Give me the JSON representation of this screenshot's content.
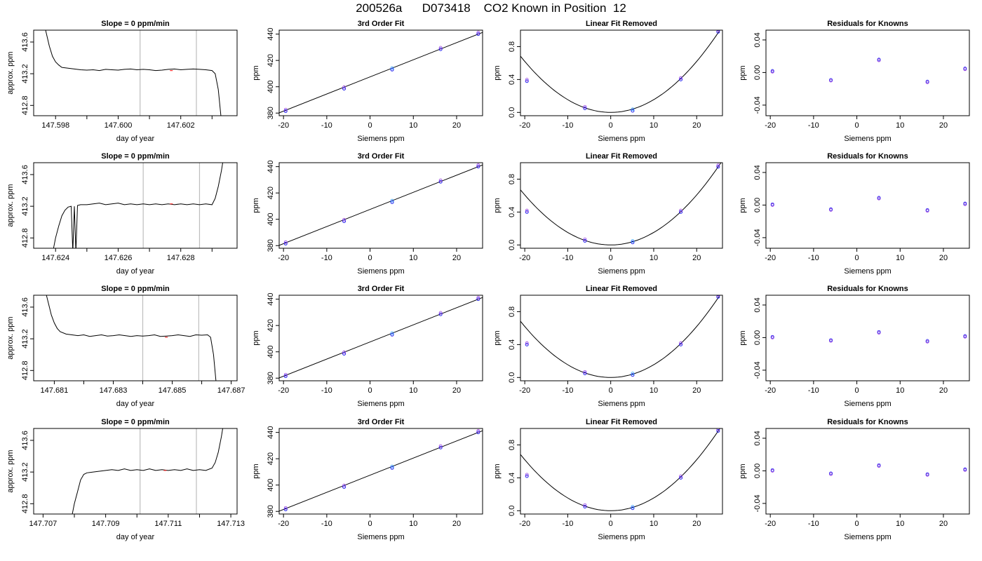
{
  "figure": {
    "title": "200526a      D073418    CO2 Known in Position  12"
  },
  "chart_data": [
    {
      "row": 1,
      "type": "line",
      "title": "Slope =  0  ppm/min",
      "xlabel": "day of year",
      "ylabel": "approx. ppm",
      "xlim": [
        147.5973,
        147.6038
      ],
      "ylim": [
        412.67,
        413.75
      ],
      "xticks": [
        "147.598",
        "147.600",
        "147.602"
      ],
      "xtick_values": [
        147.598,
        147.6,
        147.602
      ],
      "yticks": [
        "412.8",
        "413.2",
        "413.6"
      ],
      "ytick_values": [
        412.8,
        413.2,
        413.6
      ],
      "minor_xticks": [
        147.599,
        147.601,
        147.603
      ],
      "vlines": [
        147.6007,
        147.6025
      ],
      "x": [
        147.5976,
        147.5977,
        147.5978,
        147.5979,
        147.598,
        147.5981,
        147.5982,
        147.5984,
        147.5986,
        147.5988,
        147.599,
        147.5992,
        147.5994,
        147.5996,
        147.5998,
        147.6,
        147.6002,
        147.6004,
        147.6006,
        147.6008,
        147.601,
        147.6012,
        147.6014,
        147.6016,
        147.6018,
        147.602,
        147.6022,
        147.6024,
        147.6026,
        147.6028,
        147.603,
        147.6031,
        147.6032,
        147.6033
      ],
      "y": [
        413.9,
        413.72,
        413.55,
        413.42,
        413.35,
        413.31,
        413.28,
        413.27,
        413.26,
        413.25,
        413.245,
        413.25,
        413.24,
        413.255,
        413.25,
        413.245,
        413.255,
        413.26,
        413.25,
        413.255,
        413.25,
        413.24,
        413.245,
        413.255,
        413.26,
        413.25,
        413.255,
        413.26,
        413.255,
        413.25,
        413.24,
        413.2,
        413.0,
        412.6
      ],
      "marker": {
        "x": 147.6017,
        "y": 413.24
      }
    },
    {
      "row": 1,
      "type": "scatter",
      "title": "3rd Order Fit",
      "xlabel": "Siemens ppm",
      "ylabel": "ppm",
      "xlim": [
        -21,
        26
      ],
      "ylim": [
        378,
        443
      ],
      "xticks": [
        "-20",
        "-10",
        "0",
        "10",
        "20"
      ],
      "xtick_values": [
        -20,
        -10,
        0,
        10,
        20
      ],
      "yticks": [
        "380",
        "400",
        "420",
        "440"
      ],
      "ytick_values": [
        380,
        400,
        420,
        440
      ],
      "x": [
        -19.5,
        -6.0,
        5.1,
        16.3,
        25.0
      ],
      "y": [
        381.5,
        398.5,
        413.0,
        428.5,
        440.0
      ],
      "curve": [
        [
          -21,
          380.2
        ],
        [
          26,
          441.3
        ]
      ]
    },
    {
      "row": 1,
      "type": "scatter",
      "title": "Linear Fit Removed",
      "xlabel": "Siemens ppm",
      "ylabel": "ppm",
      "xlim": [
        -21,
        26
      ],
      "ylim": [
        -0.04,
        1.0
      ],
      "xticks": [
        "-20",
        "-10",
        "0",
        "10",
        "20"
      ],
      "xtick_values": [
        -20,
        -10,
        0,
        10,
        20
      ],
      "yticks": [
        "0.0",
        "0.4",
        "0.8"
      ],
      "ytick_values": [
        0.0,
        0.4,
        0.8
      ],
      "x": [
        -19.5,
        -6.0,
        5.1,
        16.3,
        25.0
      ],
      "y": [
        0.38,
        0.05,
        0.02,
        0.4,
        0.98
      ],
      "curve_coef": 0.00155
    },
    {
      "row": 1,
      "type": "scatter",
      "title": "Residuals for Knowns",
      "xlabel": "Siemens ppm",
      "ylabel": "ppm",
      "xlim": [
        -21,
        26
      ],
      "ylim": [
        -0.053,
        0.052
      ],
      "xticks": [
        "-20",
        "-10",
        "0",
        "10",
        "20"
      ],
      "xtick_values": [
        -20,
        -10,
        0,
        10,
        20
      ],
      "yticks": [
        "-0.04",
        "0.00",
        "0.04"
      ],
      "ytick_values": [
        -0.04,
        0.0,
        0.04
      ],
      "x": [
        -19.5,
        -6.0,
        5.1,
        16.3,
        25.0
      ],
      "y": [
        0.001,
        -0.01,
        0.015,
        -0.012,
        0.004
      ]
    },
    {
      "row": 2,
      "type": "line",
      "title": "Slope =  0  ppm/min",
      "xlabel": "day of year",
      "ylabel": "approx. ppm",
      "xlim": [
        147.6233,
        147.6298
      ],
      "ylim": [
        412.67,
        413.75
      ],
      "xticks": [
        "147.624",
        "147.626",
        "147.628"
      ],
      "xtick_values": [
        147.624,
        147.626,
        147.628
      ],
      "yticks": [
        "412.8",
        "413.2",
        "413.6"
      ],
      "ytick_values": [
        412.8,
        413.2,
        413.6
      ],
      "minor_xticks": [
        147.625,
        147.627,
        147.629
      ],
      "vlines": [
        147.6268,
        147.6286
      ],
      "x": [
        147.6239,
        147.624,
        147.6241,
        147.6242,
        147.6243,
        147.6244,
        147.6245,
        147.62455,
        147.6246,
        147.62465,
        147.6247,
        147.6248,
        147.625,
        147.6252,
        147.6254,
        147.6256,
        147.6258,
        147.626,
        147.6262,
        147.6264,
        147.6266,
        147.6268,
        147.627,
        147.6272,
        147.6274,
        147.6276,
        147.6278,
        147.628,
        147.6282,
        147.6284,
        147.6286,
        147.6288,
        147.629,
        147.6291,
        147.6292,
        147.6293,
        147.6294
      ],
      "y": [
        412.6,
        412.8,
        412.95,
        413.08,
        413.15,
        413.19,
        413.2,
        412.62,
        413.2,
        412.62,
        413.21,
        413.22,
        413.22,
        413.23,
        413.24,
        413.22,
        413.23,
        413.24,
        413.22,
        413.23,
        413.22,
        413.23,
        413.22,
        413.23,
        413.22,
        413.23,
        413.22,
        413.23,
        413.22,
        413.23,
        413.22,
        413.23,
        413.22,
        413.3,
        413.45,
        413.65,
        413.9
      ],
      "marker": {
        "x": 147.6277,
        "y": 413.23
      }
    },
    {
      "row": 2,
      "type": "scatter",
      "title": "3rd Order Fit",
      "xlabel": "Siemens ppm",
      "ylabel": "ppm",
      "xlim": [
        -21,
        26
      ],
      "ylim": [
        378,
        443
      ],
      "xticks": [
        "-20",
        "-10",
        "0",
        "10",
        "20"
      ],
      "xtick_values": [
        -20,
        -10,
        0,
        10,
        20
      ],
      "yticks": [
        "380",
        "400",
        "420",
        "440"
      ],
      "ytick_values": [
        380,
        400,
        420,
        440
      ],
      "x": [
        -19.5,
        -6.0,
        5.1,
        16.3,
        25.0
      ],
      "y": [
        381.5,
        398.5,
        413.0,
        428.5,
        440.0
      ],
      "curve": [
        [
          -21,
          380.2
        ],
        [
          26,
          441.3
        ]
      ]
    },
    {
      "row": 2,
      "type": "scatter",
      "title": "Linear Fit Removed",
      "xlabel": "Siemens ppm",
      "ylabel": "ppm",
      "xlim": [
        -21,
        26
      ],
      "ylim": [
        -0.04,
        1.0
      ],
      "xticks": [
        "-20",
        "-10",
        "0",
        "10",
        "20"
      ],
      "xtick_values": [
        -20,
        -10,
        0,
        10,
        20
      ],
      "yticks": [
        "0.0",
        "0.4",
        "0.8"
      ],
      "ytick_values": [
        0.0,
        0.4,
        0.8
      ],
      "x": [
        -19.5,
        -6.0,
        5.1,
        16.3,
        25.0
      ],
      "y": [
        0.4,
        0.05,
        0.03,
        0.4,
        0.95
      ],
      "curve_coef": 0.00152
    },
    {
      "row": 2,
      "type": "scatter",
      "title": "Residuals for Knowns",
      "xlabel": "Siemens ppm",
      "ylabel": "ppm",
      "xlim": [
        -21,
        26
      ],
      "ylim": [
        -0.053,
        0.052
      ],
      "xticks": [
        "-20",
        "-10",
        "0",
        "10",
        "20"
      ],
      "xtick_values": [
        -20,
        -10,
        0,
        10,
        20
      ],
      "yticks": [
        "-0.04",
        "0.00",
        "0.04"
      ],
      "ytick_values": [
        -0.04,
        0.0,
        0.04
      ],
      "x": [
        -19.5,
        -6.0,
        5.1,
        16.3,
        25.0
      ],
      "y": [
        0.0,
        -0.006,
        0.008,
        -0.007,
        0.001
      ]
    },
    {
      "row": 3,
      "type": "line",
      "title": "Slope =  0  ppm/min",
      "xlabel": "day of year",
      "ylabel": "approx. ppm",
      "xlim": [
        147.6803,
        147.6872
      ],
      "ylim": [
        412.67,
        413.75
      ],
      "xticks": [
        "147.681",
        "147.683",
        "147.685",
        "147.687"
      ],
      "xtick_values": [
        147.681,
        147.683,
        147.685,
        147.687
      ],
      "yticks": [
        "412.8",
        "413.2",
        "413.6"
      ],
      "ytick_values": [
        412.8,
        413.2,
        413.6
      ],
      "minor_xticks": [
        147.682,
        147.684,
        147.686
      ],
      "vlines": [
        147.684,
        147.6859
      ],
      "x": [
        147.6807,
        147.6808,
        147.6809,
        147.681,
        147.6811,
        147.6812,
        147.6814,
        147.6816,
        147.6818,
        147.682,
        147.6822,
        147.6824,
        147.6826,
        147.6828,
        147.683,
        147.6832,
        147.6834,
        147.6836,
        147.6838,
        147.684,
        147.6842,
        147.6844,
        147.6846,
        147.6848,
        147.685,
        147.6852,
        147.6854,
        147.6856,
        147.6858,
        147.686,
        147.6862,
        147.6863,
        147.6864,
        147.6865
      ],
      "y": [
        413.8,
        413.65,
        413.5,
        413.4,
        413.33,
        413.29,
        413.26,
        413.25,
        413.24,
        413.25,
        413.23,
        413.24,
        413.25,
        413.235,
        413.24,
        413.25,
        413.24,
        413.23,
        413.24,
        413.235,
        413.24,
        413.25,
        413.23,
        413.235,
        413.24,
        413.25,
        413.24,
        413.23,
        413.25,
        413.245,
        413.25,
        413.22,
        413.0,
        412.6
      ],
      "marker": {
        "x": 147.6848,
        "y": 413.22
      }
    },
    {
      "row": 3,
      "type": "scatter",
      "title": "3rd Order Fit",
      "xlabel": "Siemens ppm",
      "ylabel": "ppm",
      "xlim": [
        -21,
        26
      ],
      "ylim": [
        378,
        443
      ],
      "xticks": [
        "-20",
        "-10",
        "0",
        "10",
        "20"
      ],
      "xtick_values": [
        -20,
        -10,
        0,
        10,
        20
      ],
      "yticks": [
        "380",
        "400",
        "420",
        "440"
      ],
      "ytick_values": [
        380,
        400,
        420,
        440
      ],
      "x": [
        -19.5,
        -6.0,
        5.1,
        16.3,
        25.0
      ],
      "y": [
        381.5,
        398.5,
        413.0,
        428.5,
        440.0
      ],
      "curve": [
        [
          -21,
          380.2
        ],
        [
          26,
          441.3
        ]
      ]
    },
    {
      "row": 3,
      "type": "scatter",
      "title": "Linear Fit Removed",
      "xlabel": "Siemens ppm",
      "ylabel": "ppm",
      "xlim": [
        -21,
        26
      ],
      "ylim": [
        -0.04,
        1.0
      ],
      "xticks": [
        "-20",
        "-10",
        "0",
        "10",
        "20"
      ],
      "xtick_values": [
        -20,
        -10,
        0,
        10,
        20
      ],
      "yticks": [
        "0.0",
        "0.4",
        "0.8"
      ],
      "ytick_values": [
        0.0,
        0.4,
        0.8
      ],
      "x": [
        -19.5,
        -6.0,
        5.1,
        16.3,
        25.0
      ],
      "y": [
        0.4,
        0.05,
        0.03,
        0.4,
        0.98
      ],
      "curve_coef": 0.00155
    },
    {
      "row": 3,
      "type": "scatter",
      "title": "Residuals for Knowns",
      "xlabel": "Siemens ppm",
      "ylabel": "ppm",
      "xlim": [
        -21,
        26
      ],
      "ylim": [
        -0.053,
        0.052
      ],
      "xticks": [
        "-20",
        "-10",
        "0",
        "10",
        "20"
      ],
      "xtick_values": [
        -20,
        -10,
        0,
        10,
        20
      ],
      "yticks": [
        "-0.04",
        "0.00",
        "0.04"
      ],
      "ytick_values": [
        -0.04,
        0.0,
        0.04
      ],
      "x": [
        -19.5,
        -6.0,
        5.1,
        16.3,
        25.0
      ],
      "y": [
        0.0,
        -0.004,
        0.006,
        -0.005,
        0.001
      ]
    },
    {
      "row": 4,
      "type": "line",
      "title": "Slope =  0  ppm/min",
      "xlabel": "day of year",
      "ylabel": "approx. ppm",
      "xlim": [
        147.7067,
        147.7132
      ],
      "ylim": [
        412.67,
        413.75
      ],
      "xticks": [
        "147.707",
        "147.709",
        "147.711",
        "147.713"
      ],
      "xtick_values": [
        147.707,
        147.709,
        147.711,
        147.713
      ],
      "yticks": [
        "412.8",
        "413.2",
        "413.6"
      ],
      "ytick_values": [
        412.8,
        413.2,
        413.6
      ],
      "minor_xticks": [
        147.708,
        147.71,
        147.712
      ],
      "vlines": [
        147.7101,
        147.7119
      ],
      "x": [
        147.7079,
        147.708,
        147.7081,
        147.7082,
        147.7083,
        147.7084,
        147.7086,
        147.7088,
        147.709,
        147.7092,
        147.7094,
        147.7096,
        147.7098,
        147.71,
        147.7102,
        147.7104,
        147.7106,
        147.7108,
        147.711,
        147.7112,
        147.7114,
        147.7116,
        147.7118,
        147.712,
        147.7122,
        147.7124,
        147.7125,
        147.7126,
        147.7127,
        147.7128
      ],
      "y": [
        412.6,
        412.8,
        412.95,
        413.1,
        413.17,
        413.19,
        413.2,
        413.21,
        413.22,
        413.23,
        413.22,
        413.24,
        413.22,
        413.23,
        413.22,
        413.24,
        413.22,
        413.23,
        413.22,
        413.23,
        413.22,
        413.24,
        413.22,
        413.23,
        413.22,
        413.25,
        413.32,
        413.45,
        413.65,
        413.9
      ],
      "marker": {
        "x": 147.7109,
        "y": 413.22
      }
    },
    {
      "row": 4,
      "type": "scatter",
      "title": "3rd Order Fit",
      "xlabel": "Siemens ppm",
      "ylabel": "ppm",
      "xlim": [
        -21,
        26
      ],
      "ylim": [
        378,
        443
      ],
      "xticks": [
        "-20",
        "-10",
        "0",
        "10",
        "20"
      ],
      "xtick_values": [
        -20,
        -10,
        0,
        10,
        20
      ],
      "yticks": [
        "380",
        "400",
        "420",
        "440"
      ],
      "ytick_values": [
        380,
        400,
        420,
        440
      ],
      "x": [
        -19.5,
        -6.0,
        5.1,
        16.3,
        25.0
      ],
      "y": [
        381.5,
        398.5,
        413.0,
        428.5,
        440.0
      ],
      "curve": [
        [
          -21,
          380.2
        ],
        [
          26,
          441.3
        ]
      ]
    },
    {
      "row": 4,
      "type": "scatter",
      "title": "Linear Fit Removed",
      "xlabel": "Siemens ppm",
      "ylabel": "ppm",
      "xlim": [
        -21,
        26
      ],
      "ylim": [
        -0.04,
        1.0
      ],
      "xticks": [
        "-20",
        "-10",
        "0",
        "10",
        "20"
      ],
      "xtick_values": [
        -20,
        -10,
        0,
        10,
        20
      ],
      "yticks": [
        "0.0",
        "0.4",
        "0.8"
      ],
      "ytick_values": [
        0.0,
        0.4,
        0.8
      ],
      "x": [
        -19.5,
        -6.0,
        5.1,
        16.3,
        25.0
      ],
      "y": [
        0.42,
        0.05,
        0.03,
        0.4,
        0.97
      ],
      "curve_coef": 0.00155
    },
    {
      "row": 4,
      "type": "scatter",
      "title": "Residuals for Knowns",
      "xlabel": "Siemens ppm",
      "ylabel": "ppm",
      "xlim": [
        -21,
        26
      ],
      "ylim": [
        -0.053,
        0.052
      ],
      "xticks": [
        "-20",
        "-10",
        "0",
        "10",
        "20"
      ],
      "xtick_values": [
        -20,
        -10,
        0,
        10,
        20
      ],
      "yticks": [
        "-0.04",
        "0.00",
        "0.04"
      ],
      "ytick_values": [
        -0.04,
        0.0,
        0.04
      ],
      "x": [
        -19.5,
        -6.0,
        5.1,
        16.3,
        25.0
      ],
      "y": [
        0.0,
        -0.004,
        0.006,
        -0.005,
        0.001
      ]
    }
  ],
  "colors": {
    "axis": "#000000",
    "line": "#000000",
    "vline": "#bdbdbd",
    "marker_red": "#ff3030",
    "point_blue": "#2222ee",
    "point_purple": "#9a3fe0",
    "point_cyan": "#2aa0ff"
  }
}
